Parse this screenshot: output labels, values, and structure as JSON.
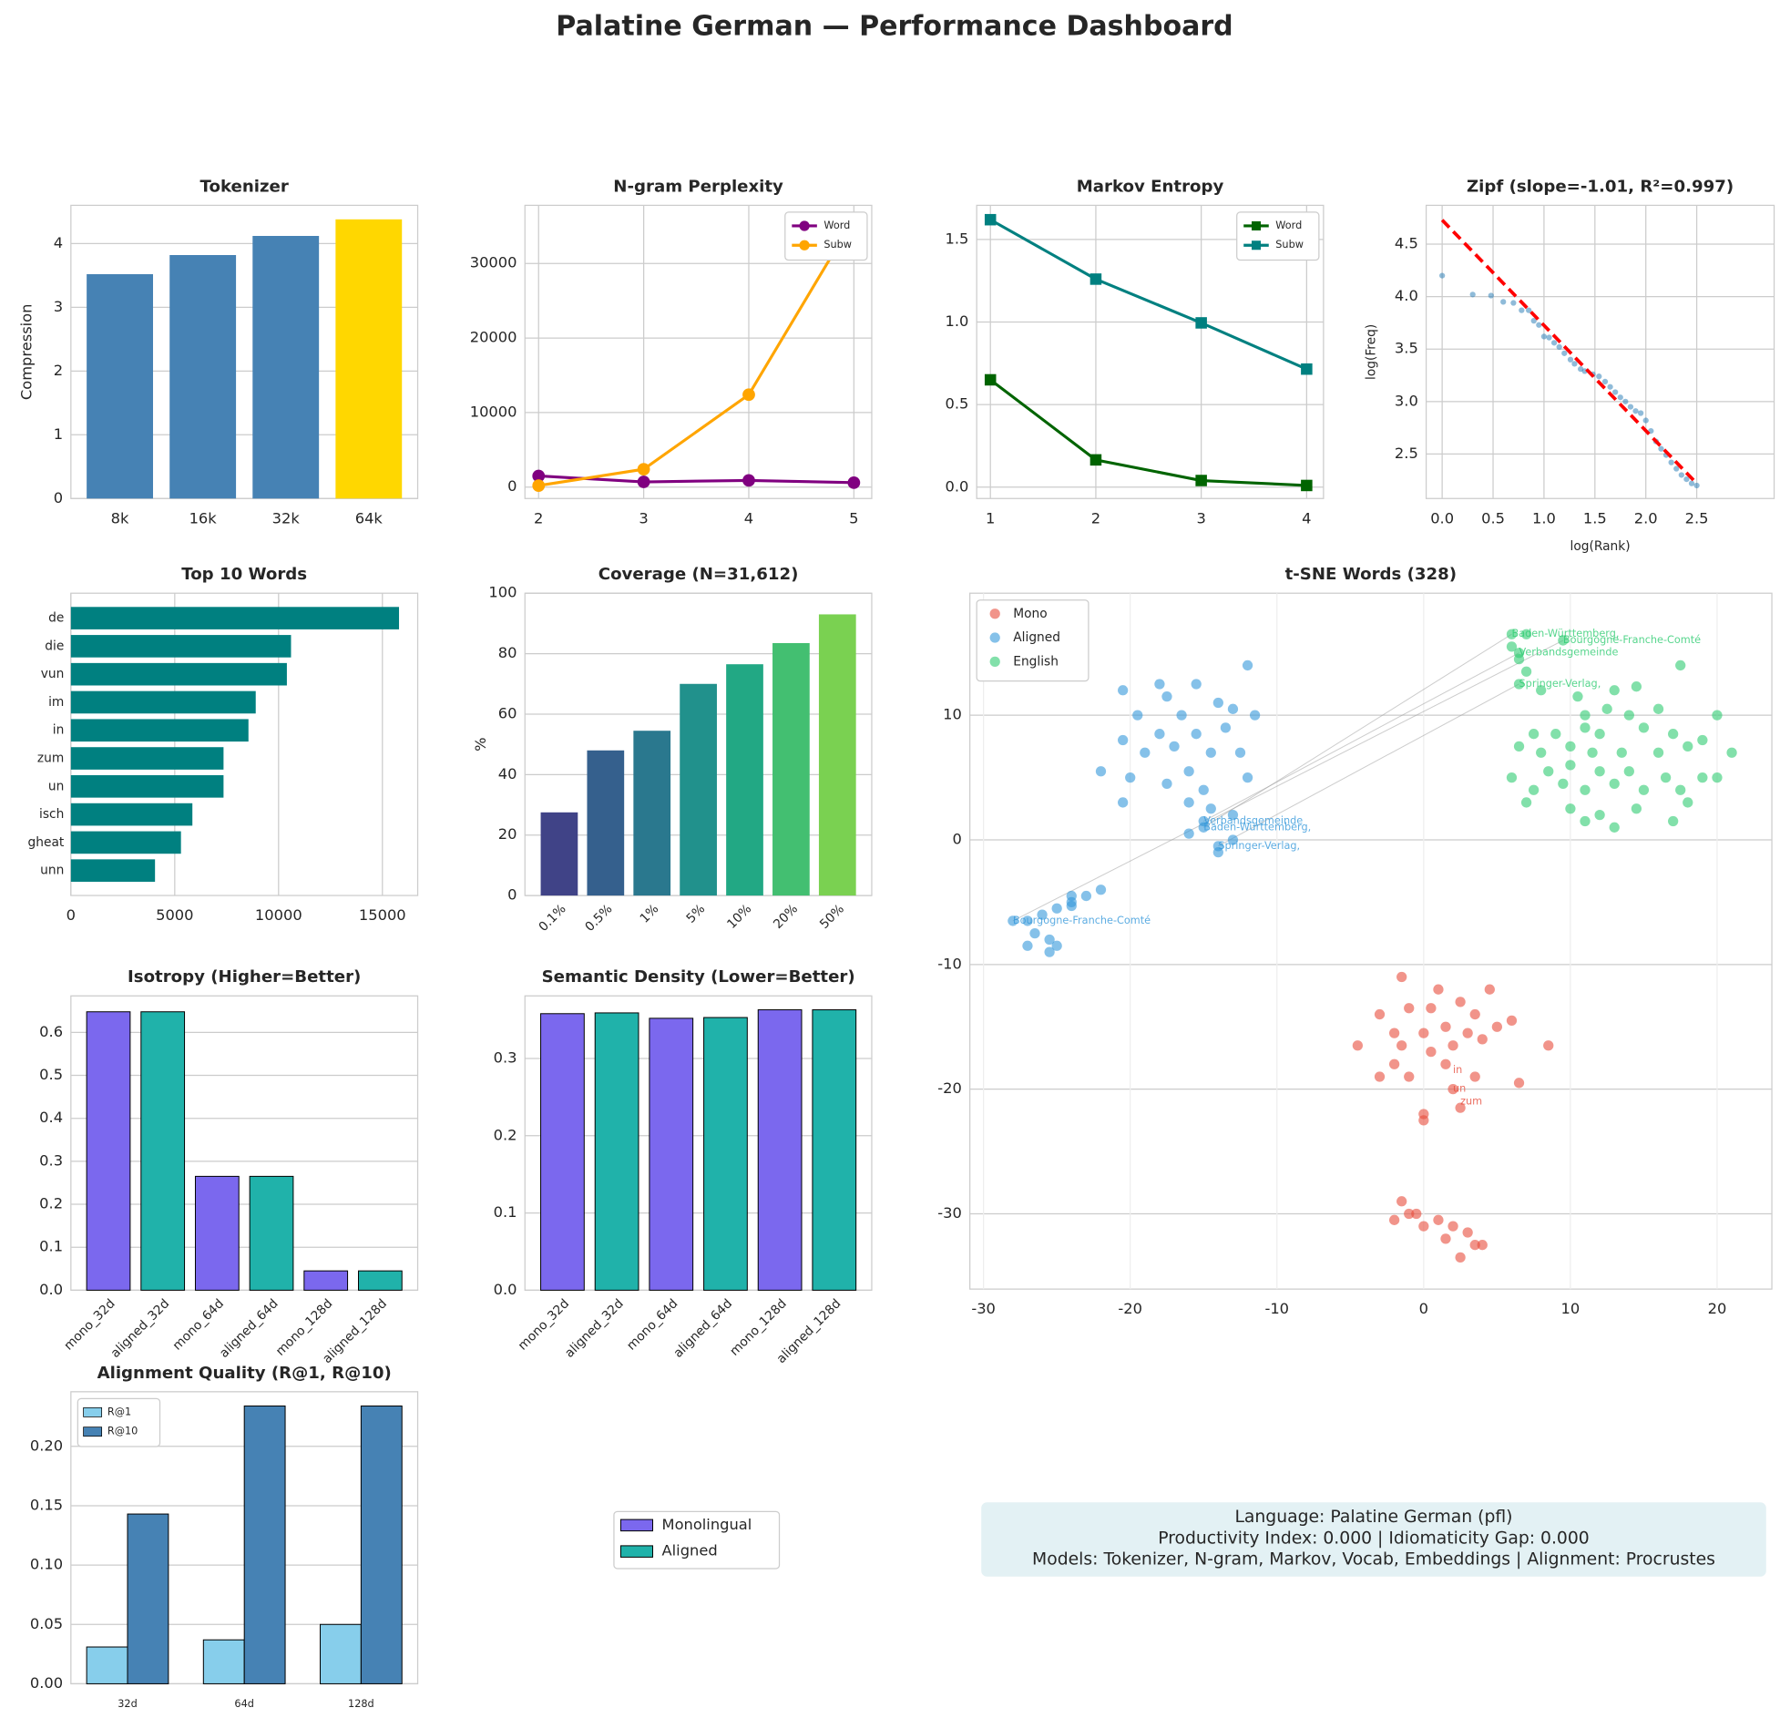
{
  "title": "Palatine German — Performance Dashboard",
  "legend": [
    {
      "name": "Monolingual",
      "color": "#7b68ee"
    },
    {
      "name": "Aligned",
      "color": "#20b2aa"
    }
  ],
  "info_box": [
    "Language: Palatine German (pfl)",
    "Productivity Index: 0.000  |  Idiomaticity Gap: 0.000",
    "Models: Tokenizer, N-gram, Markov, Vocab, Embeddings  |  Alignment: Procrustes"
  ],
  "chart_data": [
    {
      "type": "bar",
      "title": "Tokenizer",
      "ylabel": "Compression",
      "categories": [
        "8k",
        "16k",
        "32k",
        "64k"
      ],
      "values": [
        3.52,
        3.82,
        4.12,
        4.38
      ],
      "colors": [
        "#4682b4",
        "#4682b4",
        "#4682b4",
        "#ffd700"
      ],
      "ylim": [
        0,
        4.6
      ],
      "yticks": [
        0,
        1,
        2,
        3,
        4
      ],
      "grid": true
    },
    {
      "type": "line",
      "title": "N-gram Perplexity",
      "x": [
        2,
        3,
        4,
        5
      ],
      "xlim": [
        1.87,
        5.17
      ],
      "xticks": [
        2,
        3,
        4,
        5
      ],
      "ylim": [
        -1530,
        37800
      ],
      "yticks": [
        0,
        10000,
        20000,
        30000
      ],
      "grid": true,
      "marker": "o",
      "legend": "upper right",
      "series": [
        {
          "name": "Word",
          "color": "#800080",
          "values": [
            1500,
            700,
            900,
            600
          ]
        },
        {
          "name": "Subw",
          "color": "#ffa500",
          "values": [
            200,
            2400,
            12400,
            36000
          ]
        }
      ]
    },
    {
      "type": "line",
      "title": "Markov Entropy",
      "x": [
        1,
        2,
        3,
        4
      ],
      "xlim": [
        0.87,
        4.16
      ],
      "xticks": [
        1,
        2,
        3,
        4
      ],
      "ylim": [
        -0.069,
        1.707
      ],
      "yticks": [
        {
          "value": 0,
          "label": "0.0"
        },
        0.5,
        {
          "value": 1,
          "label": "1.0"
        },
        1.5
      ],
      "grid": true,
      "marker": "s",
      "legend": "upper right",
      "series": [
        {
          "name": "Word",
          "color": "#006400",
          "values": [
            0.65,
            0.165,
            0.04,
            0.01
          ]
        },
        {
          "name": "Subw",
          "color": "#008080",
          "values": [
            1.62,
            1.26,
            0.995,
            0.715
          ]
        }
      ]
    },
    {
      "type": "scatter",
      "title": "Zipf (slope=-1.01, R²=0.997)",
      "xlabel": "log(Rank)",
      "ylabel": "log(Freq)",
      "xlim": [
        -0.157,
        3.26
      ],
      "ylim": [
        2.076,
        4.87
      ],
      "xticks": [
        {
          "value": 0,
          "label": "0.0"
        },
        0.5,
        {
          "value": 1,
          "label": "1.0"
        },
        1.5,
        {
          "value": 2,
          "label": "2.0"
        },
        2.5
      ],
      "yticks": [
        2.5,
        {
          "value": 3,
          "label": "3.0"
        },
        3.5,
        {
          "value": 4,
          "label": "4.0"
        },
        4.5
      ],
      "grid": true,
      "points": {
        "color": "#1f77b4",
        "x": [
          0,
          0.3,
          0.48,
          0.6,
          0.7,
          0.78,
          0.85,
          0.9,
          0.95,
          1.0,
          1.05,
          1.1,
          1.15,
          1.2,
          1.26,
          1.3,
          1.36,
          1.4,
          1.48,
          1.54,
          1.6,
          1.65,
          1.7,
          1.75,
          1.8,
          1.85,
          1.9,
          1.95,
          2.0,
          2.05,
          2.1,
          2.15,
          2.2,
          2.25,
          2.3,
          2.35,
          2.4,
          2.45,
          2.5
        ],
        "y": [
          4.2,
          4.02,
          4.01,
          3.95,
          3.94,
          3.87,
          3.87,
          3.77,
          3.73,
          3.62,
          3.61,
          3.56,
          3.52,
          3.46,
          3.4,
          3.36,
          3.31,
          3.29,
          3.26,
          3.24,
          3.19,
          3.14,
          3.09,
          3.04,
          3.0,
          2.95,
          2.91,
          2.89,
          2.82,
          2.72,
          2.62,
          2.55,
          2.49,
          2.42,
          2.36,
          2.3,
          2.26,
          2.22,
          2.2
        ]
      },
      "fit": {
        "color": "#ff0000",
        "x": [
          0,
          2.5
        ],
        "y": [
          4.73,
          2.22
        ]
      }
    },
    {
      "type": "barh",
      "title": "Top 10 Words",
      "categories": [
        "de",
        "die",
        "vun",
        "im",
        "in",
        "zum",
        "un",
        "isch",
        "gheat",
        "unn"
      ],
      "values": [
        15800,
        10600,
        10400,
        8900,
        8550,
        7350,
        7350,
        5850,
        5300,
        4050
      ],
      "color": "#008080",
      "xlim": [
        0,
        16700
      ],
      "xticks": [
        0,
        5000,
        10000,
        15000
      ],
      "grid": true
    },
    {
      "type": "bar",
      "title": "Coverage (N=31,612)",
      "ylabel": "%",
      "categories": [
        "0.1%",
        "0.5%",
        "1%",
        "5%",
        "10%",
        "20%",
        "50%"
      ],
      "values": [
        27.5,
        48,
        54.5,
        70,
        76.5,
        83.5,
        93
      ],
      "colors": [
        "#404387",
        "#35608d",
        "#2a788e",
        "#21918c",
        "#22a884",
        "#43bf71",
        "#7ad151"
      ],
      "ylim": [
        0,
        100
      ],
      "yticks": [
        0,
        20,
        40,
        60,
        80,
        100
      ],
      "grid": true,
      "xtick_rotation": 45
    },
    {
      "type": "bar",
      "title": "Isotropy (Higher=Better)",
      "categories": [
        "mono_32d",
        "aligned_32d",
        "mono_64d",
        "aligned_64d",
        "mono_128d",
        "aligned_128d"
      ],
      "values": [
        0.648,
        0.648,
        0.265,
        0.265,
        0.045,
        0.045
      ],
      "colors": [
        "#7b68ee",
        "#20b2aa",
        "#7b68ee",
        "#20b2aa",
        "#7b68ee",
        "#20b2aa"
      ],
      "edgecolor": "#000000",
      "ylim": [
        0,
        0.685
      ],
      "yticks": [
        {
          "value": 0,
          "label": "0.0"
        },
        0.1,
        0.2,
        0.3,
        0.4,
        0.5,
        0.6
      ],
      "grid": true,
      "xtick_rotation": 45
    },
    {
      "type": "bar",
      "title": "Semantic Density (Lower=Better)",
      "categories": [
        "mono_32d",
        "aligned_32d",
        "mono_64d",
        "aligned_64d",
        "mono_128d",
        "aligned_128d"
      ],
      "values": [
        0.358,
        0.359,
        0.352,
        0.353,
        0.363,
        0.363
      ],
      "colors": [
        "#7b68ee",
        "#20b2aa",
        "#7b68ee",
        "#20b2aa",
        "#7b68ee",
        "#20b2aa"
      ],
      "edgecolor": "#000000",
      "ylim": [
        0,
        0.381
      ],
      "yticks": [
        {
          "value": 0,
          "label": "0.0"
        },
        0.1,
        0.2,
        0.3
      ],
      "grid": true,
      "xtick_rotation": 45
    },
    {
      "type": "grouped_bar",
      "title": "Alignment Quality (R@1, R@10)",
      "categories": [
        "32d",
        "64d",
        "128d"
      ],
      "bar_width": 0.35,
      "edgecolor": "#000000",
      "ylim": [
        0,
        0.246
      ],
      "yticks": [
        {
          "value": 0,
          "label": "0.00"
        },
        0.05,
        {
          "value": 0.1,
          "label": "0.10"
        },
        0.15,
        {
          "value": 0.2,
          "label": "0.20"
        }
      ],
      "grid": true,
      "legend": "upper left",
      "series": [
        {
          "name": "R@1",
          "color": "#87ceeb",
          "values": [
            0.031,
            0.037,
            0.05
          ]
        },
        {
          "name": "R@10",
          "color": "#4682b4",
          "values": [
            0.143,
            0.234,
            0.234
          ]
        }
      ]
    },
    {
      "type": "scatter_groups",
      "title": "t-SNE Words (328)",
      "xlim": [
        -30.93,
        23.73
      ],
      "ylim": [
        -36.04,
        19.79
      ],
      "xticks": [
        -30,
        -20,
        -10,
        0,
        10,
        20
      ],
      "yticks": [
        -30,
        -20,
        -10,
        0,
        10
      ],
      "grid": true,
      "legend": "upper left",
      "series": [
        {
          "name": "Mono",
          "color": "#e74c3c",
          "x": [
            -1.5,
            1,
            4.5,
            -1,
            0.5,
            2.5,
            3.5,
            -3,
            -2,
            0,
            1.5,
            3,
            5,
            6,
            -4.5,
            -1.5,
            0.5,
            2,
            4,
            8.5,
            -2,
            -1,
            1.5,
            3.5,
            -3,
            0,
            0,
            2.5,
            6.5,
            2,
            -1.5,
            -0.5,
            -2,
            1,
            2,
            3,
            1.5,
            3.5,
            2.5,
            0,
            4,
            -1
          ],
          "y": [
            -11,
            -12,
            -12,
            -13.5,
            -13.5,
            -13,
            -14,
            -14,
            -15.5,
            -15.5,
            -15,
            -15.5,
            -15,
            -14.5,
            -16.5,
            -16.5,
            -17,
            -16.5,
            -16,
            -16.5,
            -18,
            -19,
            -18,
            -19,
            -19,
            -22,
            -22.5,
            -21.5,
            -19.5,
            -20,
            -29,
            -30,
            -30.5,
            -30.5,
            -31,
            -31.5,
            -32,
            -32.5,
            -33.5,
            -31,
            -32.5,
            -30
          ]
        },
        {
          "name": "Aligned",
          "color": "#3498db",
          "x": [
            -20.5,
            -18,
            -15.5,
            -12,
            -17.5,
            -14,
            -19.5,
            -16.5,
            -13,
            -11.5,
            -20.5,
            -18,
            -15.5,
            -13.5,
            -19,
            -17,
            -14.5,
            -12.5,
            -22,
            -20,
            -16,
            -12,
            -20.5,
            -17.5,
            -15,
            -16,
            -14.5,
            -13,
            -15,
            -15,
            -14,
            -13,
            -14,
            -16,
            -22,
            -23,
            -24,
            -25,
            -26,
            -27,
            -28,
            -26.5,
            -25.5,
            -27,
            -25,
            -25.5,
            -24,
            -24
          ],
          "y": [
            12,
            12.5,
            12.5,
            14,
            11.5,
            11,
            10,
            10,
            10.5,
            10,
            8,
            8.5,
            8.5,
            9,
            7,
            7.5,
            7,
            7,
            5.5,
            5,
            5.5,
            5,
            3,
            4.5,
            4,
            3,
            2.5,
            2,
            1.5,
            1,
            -0.5,
            0,
            -1,
            0.5,
            -4,
            -4.5,
            -5,
            -5.5,
            -6,
            -6.5,
            -6.5,
            -7.5,
            -8,
            -8.5,
            -8.5,
            -9,
            -4.5,
            -5.3
          ]
        },
        {
          "name": "English",
          "color": "#2ecc71",
          "x": [
            6,
            7,
            9.5,
            6,
            6.5,
            6.5,
            7,
            6.5,
            8,
            17.5,
            13,
            14.5,
            10.5,
            11,
            12.5,
            14,
            16,
            20,
            7.5,
            9,
            11,
            12,
            15,
            17,
            19,
            6.5,
            8,
            10,
            11.5,
            13.5,
            16,
            18,
            21,
            6,
            8.5,
            10,
            12,
            14,
            16.5,
            19,
            20,
            7.5,
            9.5,
            11,
            13,
            15,
            17.5,
            7,
            10,
            12,
            14.5,
            17,
            18,
            13,
            11
          ],
          "y": [
            16.5,
            16.5,
            16,
            15.5,
            15,
            14.5,
            13.5,
            12.5,
            12,
            14,
            12,
            12.3,
            11.5,
            10,
            10.5,
            10,
            10.5,
            10,
            8.5,
            8.5,
            9,
            8.5,
            9,
            8.5,
            8,
            7.5,
            7,
            7.5,
            7,
            7,
            7,
            7.5,
            7,
            5,
            5.5,
            6,
            5.5,
            5.5,
            5,
            5,
            5,
            4,
            4.5,
            4,
            4.5,
            4,
            4,
            3,
            2.5,
            2,
            2.5,
            1.5,
            3,
            1,
            1.5
          ]
        }
      ],
      "annotations": [
        {
          "text": "Baden-Württemberg,",
          "x": 6,
          "y": 16.5,
          "color": "#2ecc71"
        },
        {
          "text": "Bourgogne-Franche-Comté",
          "x": 9.5,
          "y": 16,
          "color": "#2ecc71"
        },
        {
          "text": "Verbandsgemeinde",
          "x": 6.5,
          "y": 15,
          "color": "#2ecc71"
        },
        {
          "text": "Springer-Verlag,",
          "x": 6.5,
          "y": 12.5,
          "color": "#2ecc71"
        },
        {
          "text": "Verbandsgemeinde",
          "x": -15,
          "y": 1.5,
          "color": "#3498db"
        },
        {
          "text": "Baden-Württemberg,",
          "x": -15,
          "y": 1,
          "color": "#3498db"
        },
        {
          "text": "Springer-Verlag,",
          "x": -14,
          "y": -0.5,
          "color": "#3498db"
        },
        {
          "text": "Bourgogne-Franche-Comté",
          "x": -28,
          "y": -6.5,
          "color": "#3498db"
        },
        {
          "text": "in",
          "x": 2,
          "y": -18.5,
          "color": "#e74c3c"
        },
        {
          "text": "un",
          "x": 2,
          "y": -20,
          "color": "#e74c3c"
        },
        {
          "text": "zum",
          "x": 2.5,
          "y": -21,
          "color": "#e74c3c"
        }
      ]
    }
  ]
}
